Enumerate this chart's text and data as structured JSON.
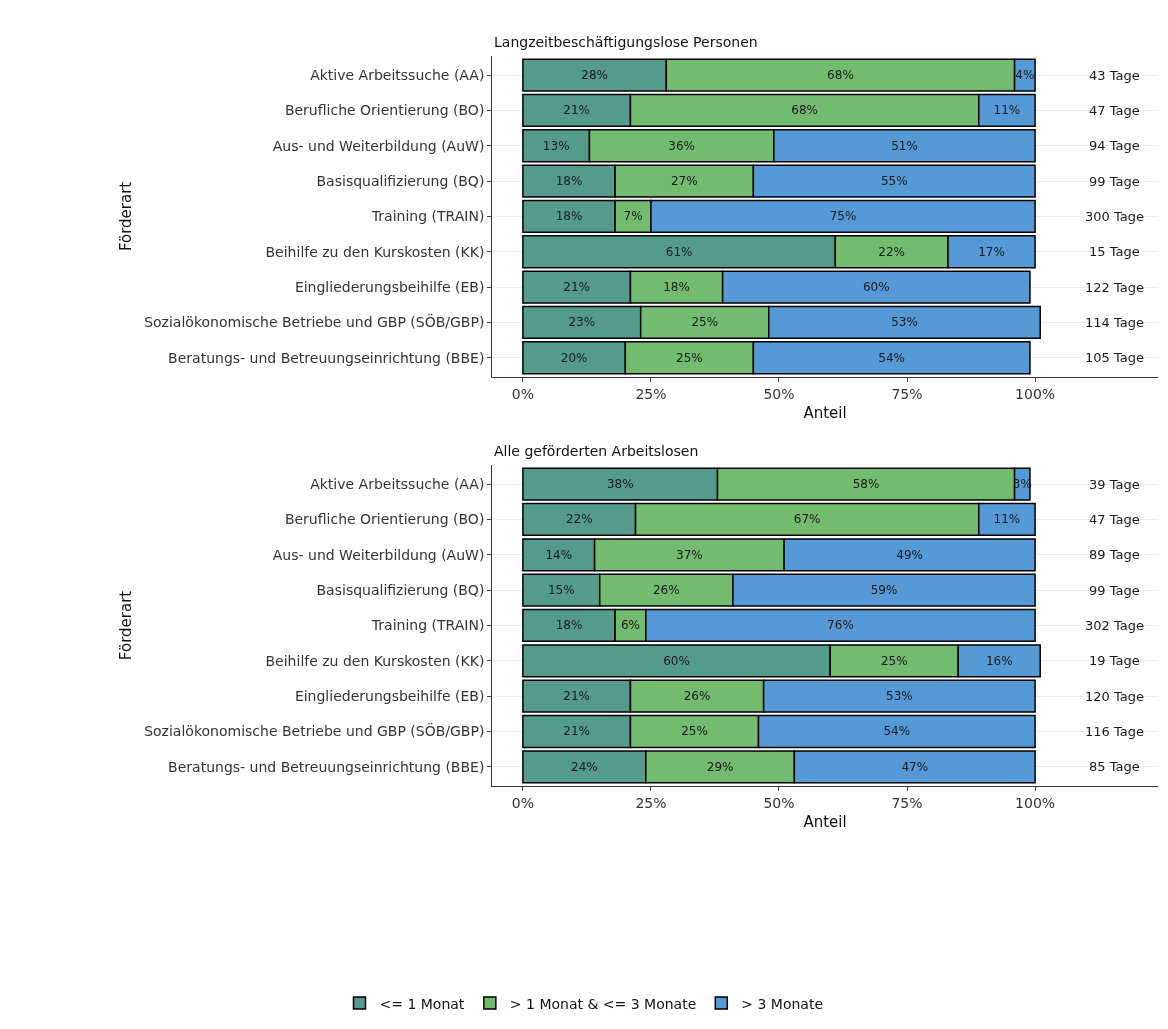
{
  "chart_data": [
    {
      "type": "bar",
      "title": "Langzeitbeschäftigungslose Personen",
      "xlabel": "Anteil",
      "ylabel": "Förderart",
      "orientation": "horizontal",
      "stacked": true,
      "categories": [
        "Aktive Arbeitssuche (AA)",
        "Berufliche Orientierung (BO)",
        "Aus- und Weiterbildung (AuW)",
        "Basisqualifizierung (BQ)",
        "Training (TRAIN)",
        "Beihilfe zu den Kurskosten (KK)",
        "Eingliederungsbeihilfe (EB)",
        "Sozialökonomische Betriebe und GBP (SÖB/GBP)",
        "Beratungs- und Betreuungseinrichtung (BBE)"
      ],
      "series": [
        {
          "name": "<= 1 Monat",
          "color": "#559b8d",
          "values": [
            28,
            21,
            13,
            18,
            18,
            61,
            21,
            23,
            20
          ],
          "value_labels": [
            "28%",
            "21%",
            "13%",
            "18%",
            "18%",
            "61%",
            "21%",
            "23%",
            "20%"
          ]
        },
        {
          "name": "> 1 Monat & <= 3 Monate",
          "color": "#72bb6f",
          "values": [
            68,
            68,
            36,
            27,
            7,
            22,
            18,
            25,
            25
          ],
          "value_labels": [
            "68%",
            "68%",
            "36%",
            "27%",
            "7%",
            "22%",
            "18%",
            "25%",
            "25%"
          ]
        },
        {
          "name": "> 3 Monate",
          "color": "#5599d6",
          "values": [
            4,
            11,
            51,
            55,
            75,
            17,
            60,
            53,
            54
          ],
          "value_labels": [
            "4%",
            "11%",
            "51%",
            "55%",
            "75%",
            "17%",
            "60%",
            "53%",
            "54%"
          ]
        }
      ],
      "annotations": [
        "43 Tage",
        "47 Tage",
        "94 Tage",
        "99 Tage",
        "300 Tage",
        "15 Tage",
        "122 Tage",
        "114 Tage",
        "105 Tage"
      ],
      "xlim": [
        -6,
        124
      ],
      "xticks": [
        {
          "value": 0,
          "label": "0%"
        },
        {
          "value": 25,
          "label": "25%"
        },
        {
          "value": 50,
          "label": "50%"
        },
        {
          "value": 75,
          "label": "75%"
        },
        {
          "value": 100,
          "label": "100%"
        }
      ],
      "grid": "y",
      "legend": "bottom"
    },
    {
      "type": "bar",
      "title": "Alle geförderten Arbeitslosen",
      "xlabel": "Anteil",
      "ylabel": "Förderart",
      "orientation": "horizontal",
      "stacked": true,
      "categories": [
        "Aktive Arbeitssuche (AA)",
        "Berufliche Orientierung (BO)",
        "Aus- und Weiterbildung (AuW)",
        "Basisqualifizierung (BQ)",
        "Training (TRAIN)",
        "Beihilfe zu den Kurskosten (KK)",
        "Eingliederungsbeihilfe (EB)",
        "Sozialökonomische Betriebe und GBP (SÖB/GBP)",
        "Beratungs- und Betreuungseinrichtung (BBE)"
      ],
      "series": [
        {
          "name": "<= 1 Monat",
          "color": "#559b8d",
          "values": [
            38,
            22,
            14,
            15,
            18,
            60,
            21,
            21,
            24
          ],
          "value_labels": [
            "38%",
            "22%",
            "14%",
            "15%",
            "18%",
            "60%",
            "21%",
            "21%",
            "24%"
          ]
        },
        {
          "name": "> 1 Monat & <= 3 Monate",
          "color": "#72bb6f",
          "values": [
            58,
            67,
            37,
            26,
            6,
            25,
            26,
            25,
            29
          ],
          "value_labels": [
            "58%",
            "67%",
            "37%",
            "26%",
            "6%",
            "25%",
            "26%",
            "25%",
            "29%"
          ]
        },
        {
          "name": "> 3 Monate",
          "color": "#5599d6",
          "values": [
            3,
            11,
            49,
            59,
            76,
            16,
            53,
            54,
            47
          ],
          "value_labels": [
            "3%",
            "11%",
            "49%",
            "59%",
            "76%",
            "16%",
            "53%",
            "54%",
            "47%"
          ]
        }
      ],
      "annotations": [
        "39 Tage",
        "47 Tage",
        "89 Tage",
        "99 Tage",
        "302 Tage",
        "19 Tage",
        "120 Tage",
        "116 Tage",
        "85 Tage"
      ],
      "xlim": [
        -6,
        124
      ],
      "xticks": [
        {
          "value": 0,
          "label": "0%"
        },
        {
          "value": 25,
          "label": "25%"
        },
        {
          "value": 50,
          "label": "50%"
        },
        {
          "value": 75,
          "label": "75%"
        },
        {
          "value": 100,
          "label": "100%"
        }
      ],
      "grid": "y",
      "legend": "bottom"
    }
  ]
}
